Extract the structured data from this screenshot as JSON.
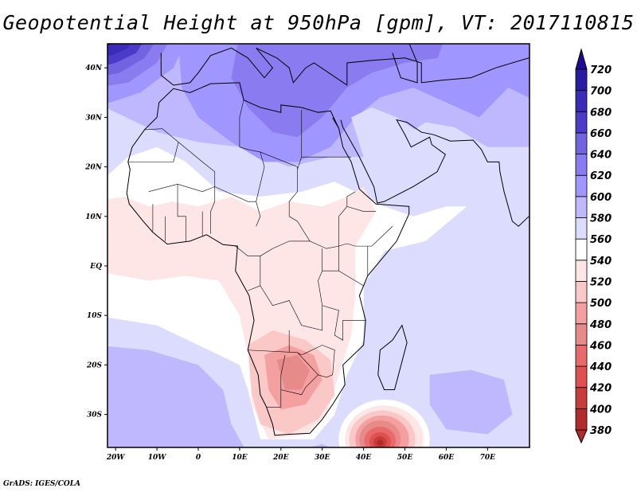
{
  "title": "Geopotential Height at 950hPa [gpm], VT: 2017110815",
  "credit": "GrADS: IGES/COLA",
  "map": {
    "region": "Africa / Middle East",
    "lon_range": [
      -22,
      80
    ],
    "lat_range": [
      -37,
      45
    ],
    "lon_ticks": [
      {
        "v": -20,
        "label": "20W"
      },
      {
        "v": -10,
        "label": "10W"
      },
      {
        "v": 0,
        "label": "0"
      },
      {
        "v": 10,
        "label": "10E"
      },
      {
        "v": 20,
        "label": "20E"
      },
      {
        "v": 30,
        "label": "30E"
      },
      {
        "v": 40,
        "label": "40E"
      },
      {
        "v": 50,
        "label": "50E"
      },
      {
        "v": 60,
        "label": "60E"
      },
      {
        "v": 70,
        "label": "70E"
      }
    ],
    "lat_ticks": [
      {
        "v": 40,
        "label": "40N"
      },
      {
        "v": 30,
        "label": "30N"
      },
      {
        "v": 20,
        "label": "20N"
      },
      {
        "v": 10,
        "label": "10N"
      },
      {
        "v": 0,
        "label": "EQ"
      },
      {
        "v": -10,
        "label": "10S"
      },
      {
        "v": -20,
        "label": "20S"
      },
      {
        "v": -30,
        "label": "30S"
      }
    ]
  },
  "colorbar": {
    "levels": [
      "380",
      "400",
      "420",
      "440",
      "460",
      "480",
      "500",
      "520",
      "540",
      "560",
      "580",
      "600",
      "620",
      "640",
      "660",
      "680",
      "700",
      "720"
    ],
    "colors": [
      "#b22a2a",
      "#c83c3c",
      "#e05050",
      "#e86a6a",
      "#e68a8a",
      "#f5a0a0",
      "#fbc8c8",
      "#ffe6e6",
      "#ffffff",
      "#dcdcff",
      "#c0b8ff",
      "#a096ff",
      "#8a7cf0",
      "#7264e0",
      "#4a3cc8",
      "#3a2cb8",
      "#2a1ca0"
    ],
    "under_color": "#b22a2a",
    "over_color": "#1e0a96"
  }
}
